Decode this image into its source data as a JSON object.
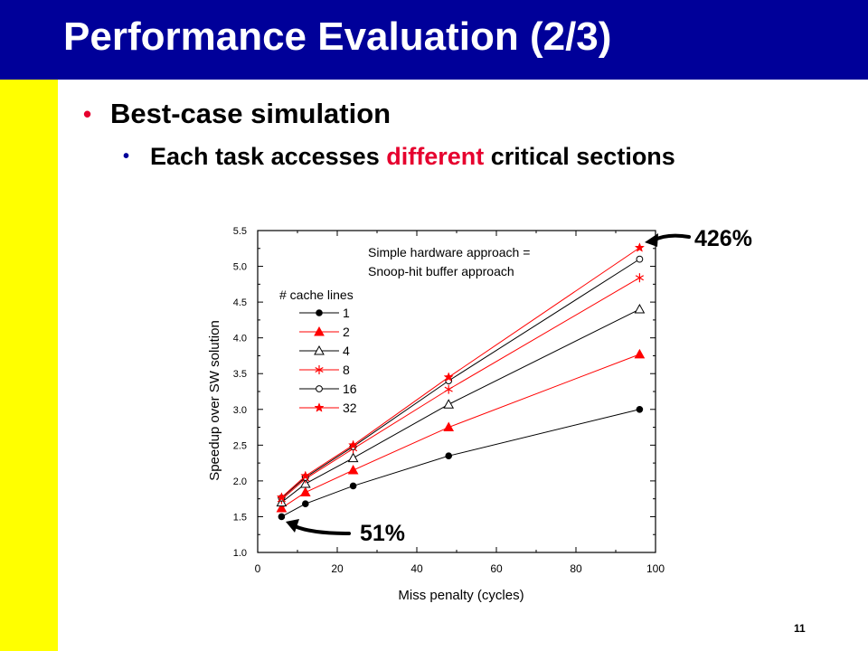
{
  "slide": {
    "title": "Performance Evaluation (2/3)",
    "bullet1": "Best-case simulation",
    "bullet2_pre": "Each task accesses ",
    "bullet2_highlight": "different",
    "bullet2_post": " critical sections",
    "page_number": "11",
    "callout_high": "426%",
    "callout_low": "51%",
    "colors": {
      "title_bar": "#000099",
      "side_bar": "#ffff00",
      "highlight": "#e6002e"
    }
  },
  "chart_data": {
    "type": "line",
    "xlabel": "Miss penalty (cycles)",
    "ylabel": "Speedup over SW solution",
    "xlim": [
      0,
      100
    ],
    "ylim": [
      1.0,
      5.5
    ],
    "xticks": [
      "0",
      "20",
      "40",
      "60",
      "80",
      "100"
    ],
    "yticks": [
      "1.0",
      "1.5",
      "2.0",
      "2.5",
      "3.0",
      "3.5",
      "4.0",
      "4.5",
      "5.0",
      "5.5"
    ],
    "annotation_line1": "Simple hardware approach =",
    "annotation_line2": "Snoop-hit buffer approach",
    "legend_title": "# cache lines",
    "legend_placement": "upper-left",
    "x": [
      6,
      12,
      24,
      48,
      96
    ],
    "series": [
      {
        "name": "1",
        "values": [
          1.5,
          1.68,
          1.93,
          2.35,
          3.0
        ],
        "color": "#000000",
        "marker": "filled-circle"
      },
      {
        "name": "2",
        "values": [
          1.62,
          1.84,
          2.15,
          2.75,
          3.77
        ],
        "color": "#ff0000",
        "marker": "filled-triangle"
      },
      {
        "name": "4",
        "values": [
          1.7,
          1.96,
          2.32,
          3.07,
          4.4
        ],
        "color": "#000000",
        "marker": "open-triangle"
      },
      {
        "name": "8",
        "values": [
          1.74,
          2.03,
          2.45,
          3.28,
          4.84
        ],
        "color": "#ff0000",
        "marker": "asterisk"
      },
      {
        "name": "16",
        "values": [
          1.76,
          2.05,
          2.48,
          3.4,
          5.1
        ],
        "color": "#000000",
        "marker": "open-circle"
      },
      {
        "name": "32",
        "values": [
          1.77,
          2.07,
          2.5,
          3.45,
          5.26
        ],
        "color": "#ff0000",
        "marker": "star"
      }
    ]
  }
}
